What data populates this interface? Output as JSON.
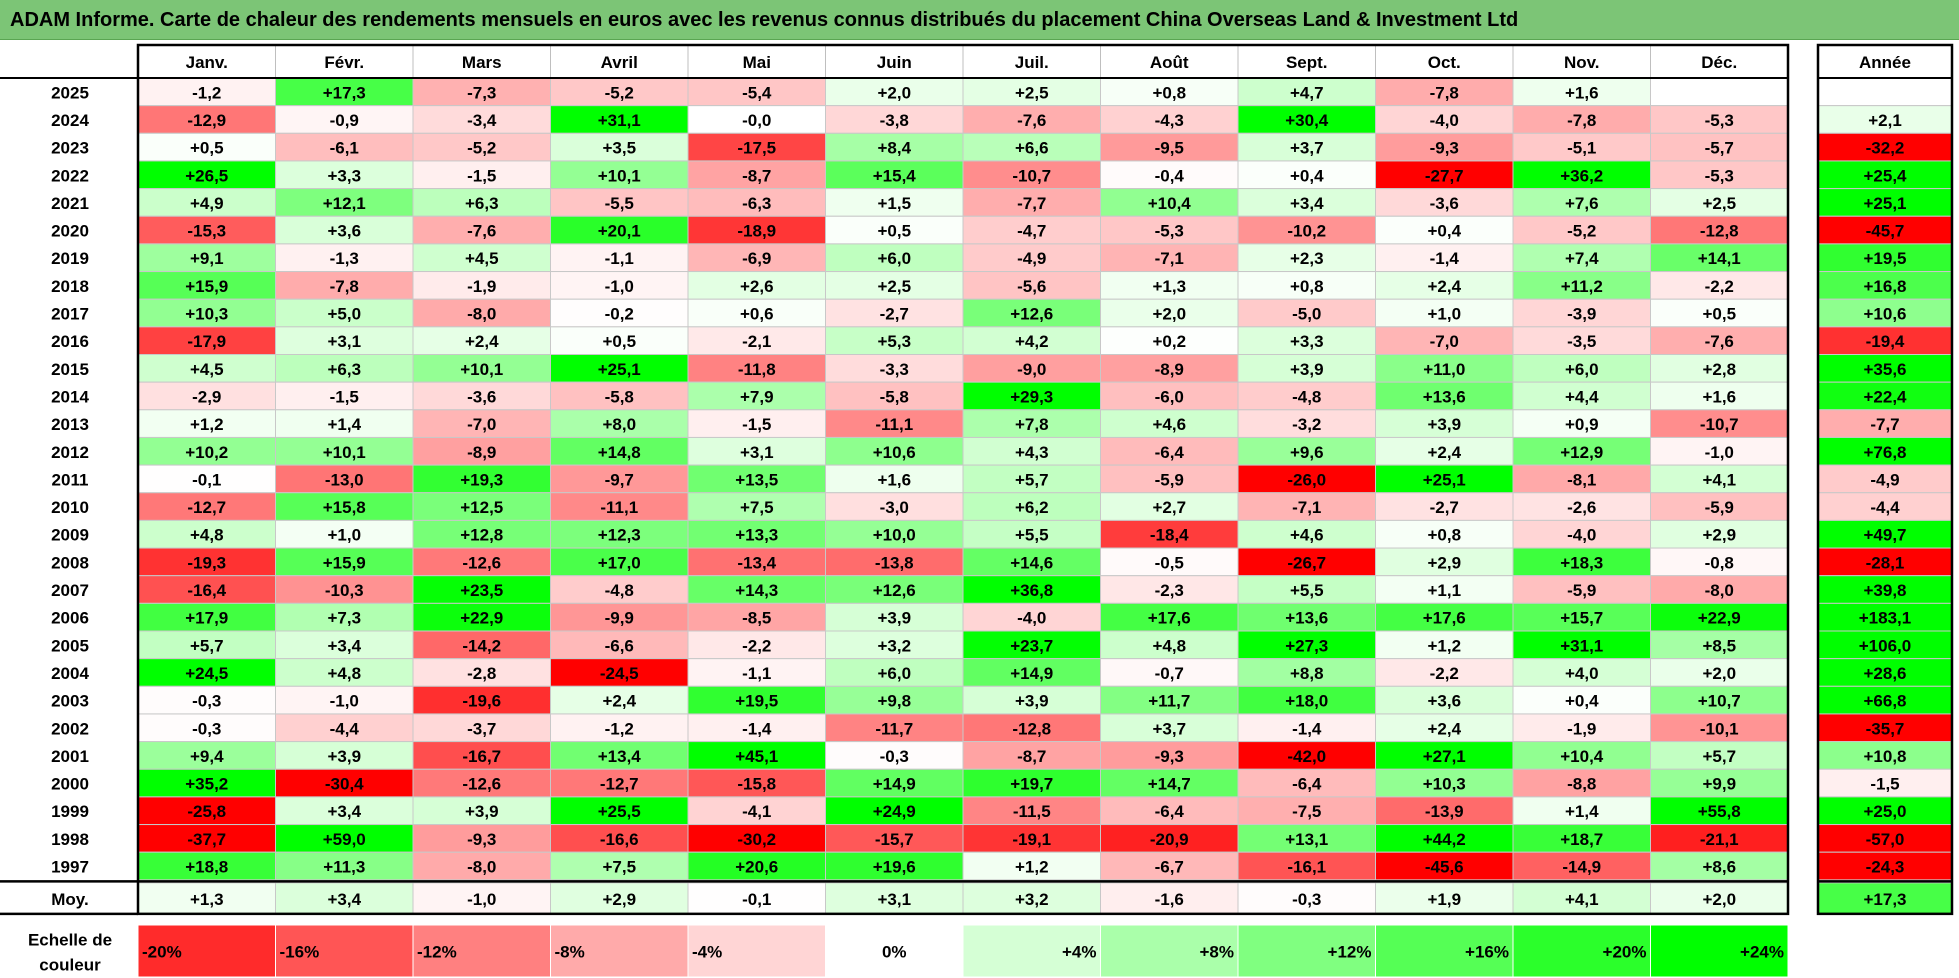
{
  "title": "ADAM Informe. Carte de chaleur des rendements mensuels en euros avec les revenus connus distribués du placement China Overseas Land & Investment Ltd",
  "chart_data": {
    "type": "heatmap",
    "months": [
      "Janv.",
      "Févr.",
      "Mars",
      "Avril",
      "Mai",
      "Juin",
      "Juil.",
      "Août",
      "Sept.",
      "Oct.",
      "Nov.",
      "Déc."
    ],
    "annual_header": "Année",
    "rows": [
      {
        "year": "2025",
        "values": [
          "-1,2",
          "+17,3",
          "-7,3",
          "-5,2",
          "-5,4",
          "+2,0",
          "+2,5",
          "+0,8",
          "+4,7",
          "-7,8",
          "+1,6",
          ""
        ],
        "annual": ""
      },
      {
        "year": "2024",
        "values": [
          "-12,9",
          "-0,9",
          "-3,4",
          "+31,1",
          "-0,0",
          "-3,8",
          "-7,6",
          "-4,3",
          "+30,4",
          "-4,0",
          "-7,8",
          "-5,3"
        ],
        "annual": "+2,1"
      },
      {
        "year": "2023",
        "values": [
          "+0,5",
          "-6,1",
          "-5,2",
          "+3,5",
          "-17,5",
          "+8,4",
          "+6,6",
          "-9,5",
          "+3,7",
          "-9,3",
          "-5,1",
          "-5,7"
        ],
        "annual": "-32,2"
      },
      {
        "year": "2022",
        "values": [
          "+26,5",
          "+3,3",
          "-1,5",
          "+10,1",
          "-8,7",
          "+15,4",
          "-10,7",
          "-0,4",
          "+0,4",
          "-27,7",
          "+36,2",
          "-5,3"
        ],
        "annual": "+25,4"
      },
      {
        "year": "2021",
        "values": [
          "+4,9",
          "+12,1",
          "+6,3",
          "-5,5",
          "-6,3",
          "+1,5",
          "-7,7",
          "+10,4",
          "+3,4",
          "-3,6",
          "+7,6",
          "+2,5"
        ],
        "annual": "+25,1"
      },
      {
        "year": "2020",
        "values": [
          "-15,3",
          "+3,6",
          "-7,6",
          "+20,1",
          "-18,9",
          "+0,5",
          "-4,7",
          "-5,3",
          "-10,2",
          "+0,4",
          "-5,2",
          "-12,8"
        ],
        "annual": "-45,7"
      },
      {
        "year": "2019",
        "values": [
          "+9,1",
          "-1,3",
          "+4,5",
          "-1,1",
          "-6,9",
          "+6,0",
          "-4,9",
          "-7,1",
          "+2,3",
          "-1,4",
          "+7,4",
          "+14,1"
        ],
        "annual": "+19,5"
      },
      {
        "year": "2018",
        "values": [
          "+15,9",
          "-7,8",
          "-1,9",
          "-1,0",
          "+2,6",
          "+2,5",
          "-5,6",
          "+1,3",
          "+0,8",
          "+2,4",
          "+11,2",
          "-2,2"
        ],
        "annual": "+16,8"
      },
      {
        "year": "2017",
        "values": [
          "+10,3",
          "+5,0",
          "-8,0",
          "-0,2",
          "+0,6",
          "-2,7",
          "+12,6",
          "+2,0",
          "-5,0",
          "+1,0",
          "-3,9",
          "+0,5"
        ],
        "annual": "+10,6"
      },
      {
        "year": "2016",
        "values": [
          "-17,9",
          "+3,1",
          "+2,4",
          "+0,5",
          "-2,1",
          "+5,3",
          "+4,2",
          "+0,2",
          "+3,3",
          "-7,0",
          "-3,5",
          "-7,6"
        ],
        "annual": "-19,4"
      },
      {
        "year": "2015",
        "values": [
          "+4,5",
          "+6,3",
          "+10,1",
          "+25,1",
          "-11,8",
          "-3,3",
          "-9,0",
          "-8,9",
          "+3,9",
          "+11,0",
          "+6,0",
          "+2,8"
        ],
        "annual": "+35,6"
      },
      {
        "year": "2014",
        "values": [
          "-2,9",
          "-1,5",
          "-3,6",
          "-5,8",
          "+7,9",
          "-5,8",
          "+29,3",
          "-6,0",
          "-4,8",
          "+13,6",
          "+4,4",
          "+1,6"
        ],
        "annual": "+22,4"
      },
      {
        "year": "2013",
        "values": [
          "+1,2",
          "+1,4",
          "-7,0",
          "+8,0",
          "-1,5",
          "-11,1",
          "+7,8",
          "+4,6",
          "-3,2",
          "+3,9",
          "+0,9",
          "-10,7"
        ],
        "annual": "-7,7"
      },
      {
        "year": "2012",
        "values": [
          "+10,2",
          "+10,1",
          "-8,9",
          "+14,8",
          "+3,1",
          "+10,6",
          "+4,3",
          "-6,4",
          "+9,6",
          "+2,4",
          "+12,9",
          "-1,0"
        ],
        "annual": "+76,8"
      },
      {
        "year": "2011",
        "values": [
          "-0,1",
          "-13,0",
          "+19,3",
          "-9,7",
          "+13,5",
          "+1,6",
          "+5,7",
          "-5,9",
          "-26,0",
          "+25,1",
          "-8,1",
          "+4,1"
        ],
        "annual": "-4,9"
      },
      {
        "year": "2010",
        "values": [
          "-12,7",
          "+15,8",
          "+12,5",
          "-11,1",
          "+7,5",
          "-3,0",
          "+6,2",
          "+2,7",
          "-7,1",
          "-2,7",
          "-2,6",
          "-5,9"
        ],
        "annual": "-4,4"
      },
      {
        "year": "2009",
        "values": [
          "+4,8",
          "+1,0",
          "+12,8",
          "+12,3",
          "+13,3",
          "+10,0",
          "+5,5",
          "-18,4",
          "+4,6",
          "+0,8",
          "-4,0",
          "+2,9"
        ],
        "annual": "+49,7"
      },
      {
        "year": "2008",
        "values": [
          "-19,3",
          "+15,9",
          "-12,6",
          "+17,0",
          "-13,4",
          "-13,8",
          "+14,6",
          "-0,5",
          "-26,7",
          "+2,9",
          "+18,3",
          "-0,8"
        ],
        "annual": "-28,1"
      },
      {
        "year": "2007",
        "values": [
          "-16,4",
          "-10,3",
          "+23,5",
          "-4,8",
          "+14,3",
          "+12,6",
          "+36,8",
          "-2,3",
          "+5,5",
          "+1,1",
          "-5,9",
          "-8,0"
        ],
        "annual": "+39,8"
      },
      {
        "year": "2006",
        "values": [
          "+17,9",
          "+7,3",
          "+22,9",
          "-9,9",
          "-8,5",
          "+3,9",
          "-4,0",
          "+17,6",
          "+13,6",
          "+17,6",
          "+15,7",
          "+22,9"
        ],
        "annual": "+183,1"
      },
      {
        "year": "2005",
        "values": [
          "+5,7",
          "+3,4",
          "-14,2",
          "-6,6",
          "-2,2",
          "+3,2",
          "+23,7",
          "+4,8",
          "+27,3",
          "+1,2",
          "+31,1",
          "+8,5"
        ],
        "annual": "+106,0"
      },
      {
        "year": "2004",
        "values": [
          "+24,5",
          "+4,8",
          "-2,8",
          "-24,5",
          "-1,1",
          "+6,0",
          "+14,9",
          "-0,7",
          "+8,8",
          "-2,2",
          "+4,0",
          "+2,0"
        ],
        "annual": "+28,6"
      },
      {
        "year": "2003",
        "values": [
          "-0,3",
          "-1,0",
          "-19,6",
          "+2,4",
          "+19,5",
          "+9,8",
          "+3,9",
          "+11,7",
          "+18,0",
          "+3,6",
          "+0,4",
          "+10,7"
        ],
        "annual": "+66,8"
      },
      {
        "year": "2002",
        "values": [
          "-0,3",
          "-4,4",
          "-3,7",
          "-1,2",
          "-1,4",
          "-11,7",
          "-12,8",
          "+3,7",
          "-1,4",
          "+2,4",
          "-1,9",
          "-10,1"
        ],
        "annual": "-35,7"
      },
      {
        "year": "2001",
        "values": [
          "+9,4",
          "+3,9",
          "-16,7",
          "+13,4",
          "+45,1",
          "-0,3",
          "-8,7",
          "-9,3",
          "-42,0",
          "+27,1",
          "+10,4",
          "+5,7"
        ],
        "annual": "+10,8"
      },
      {
        "year": "2000",
        "values": [
          "+35,2",
          "-30,4",
          "-12,6",
          "-12,7",
          "-15,8",
          "+14,9",
          "+19,7",
          "+14,7",
          "-6,4",
          "+10,3",
          "-8,8",
          "+9,9"
        ],
        "annual": "-1,5"
      },
      {
        "year": "1999",
        "values": [
          "-25,8",
          "+3,4",
          "+3,9",
          "+25,5",
          "-4,1",
          "+24,9",
          "-11,5",
          "-6,4",
          "-7,5",
          "-13,9",
          "+1,4",
          "+55,8"
        ],
        "annual": "+25,0"
      },
      {
        "year": "1998",
        "values": [
          "-37,7",
          "+59,0",
          "-9,3",
          "-16,6",
          "-30,2",
          "-15,7",
          "-19,1",
          "-20,9",
          "+13,1",
          "+44,2",
          "+18,7",
          "-21,1"
        ],
        "annual": "-57,0"
      },
      {
        "year": "1997",
        "values": [
          "+18,8",
          "+11,3",
          "-8,0",
          "+7,5",
          "+20,6",
          "+19,6",
          "+1,2",
          "-6,7",
          "-16,1",
          "-45,6",
          "-14,9",
          "+8,6"
        ],
        "annual": "-24,3"
      }
    ],
    "average_row": {
      "label": "Moy.",
      "values": [
        "+1,3",
        "+3,4",
        "-1,0",
        "+2,9",
        "-0,1",
        "+3,1",
        "+3,2",
        "-1,6",
        "-0,3",
        "+1,9",
        "+4,1",
        "+2,0"
      ],
      "annual": "+17,3"
    },
    "color_scale": {
      "label_line1": "Echelle de",
      "label_line2": "couleur",
      "stops": [
        "-20%",
        "-16%",
        "-12%",
        "-8%",
        "-4%",
        "0%",
        "+4%",
        "+8%",
        "+12%",
        "+16%",
        "+20%",
        "+24%"
      ],
      "stop_values": [
        -20,
        -16,
        -12,
        -8,
        -4,
        0,
        4,
        8,
        12,
        16,
        20,
        24
      ]
    },
    "colors": {
      "negative": "#ff0000",
      "neutral": "#ffffff",
      "positive": "#00ff00"
    }
  }
}
